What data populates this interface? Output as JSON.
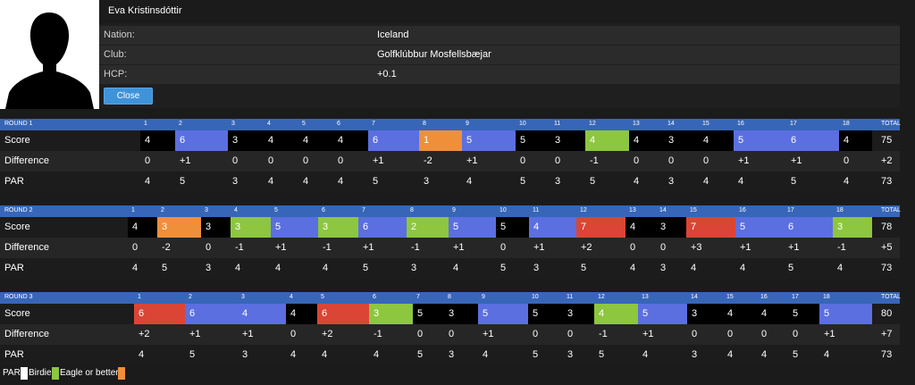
{
  "player": {
    "name": "Eva Kristinsdóttir",
    "nation_label": "Nation:",
    "nation": "Iceland",
    "club_label": "Club:",
    "club": "Golfklúbbur Mosfellsbæjar",
    "hcp_label": "HCP:",
    "hcp": "+0.1",
    "close_label": "Close"
  },
  "colors": {
    "par": "#000000",
    "birdie": "#8dc63f",
    "eagle": "#ef8f3a",
    "bogey": "#5b6fe0",
    "double_bogey": "#da4536"
  },
  "row_labels": {
    "score": "Score",
    "difference": "Difference",
    "par": "PAR"
  },
  "total_label": "TOTAL",
  "rounds": [
    {
      "title": "ROUND 1",
      "holes": [
        "1",
        "2",
        "3",
        "4",
        "5",
        "6",
        "7",
        "8",
        "9",
        "10",
        "11",
        "12",
        "13",
        "14",
        "15",
        "16",
        "17",
        "18"
      ],
      "score": [
        "4",
        "6",
        "3",
        "4",
        "4",
        "4",
        "6",
        "1",
        "5",
        "5",
        "3",
        "4",
        "4",
        "3",
        "4",
        "5",
        "6",
        "4"
      ],
      "difference": [
        "0",
        "+1",
        "0",
        "0",
        "0",
        "0",
        "+1",
        "-2",
        "+1",
        "0",
        "0",
        "-1",
        "0",
        "0",
        "0",
        "+1",
        "+1",
        "0"
      ],
      "par": [
        "4",
        "5",
        "3",
        "4",
        "4",
        "4",
        "5",
        "3",
        "4",
        "5",
        "3",
        "5",
        "4",
        "3",
        "4",
        "4",
        "5",
        "4"
      ],
      "score_total": "75",
      "diff_total": "+2",
      "par_total": "73"
    },
    {
      "title": "ROUND 2",
      "holes": [
        "1",
        "2",
        "3",
        "4",
        "5",
        "6",
        "7",
        "8",
        "9",
        "10",
        "11",
        "12",
        "13",
        "14",
        "15",
        "16",
        "17",
        "18"
      ],
      "score": [
        "4",
        "3",
        "3",
        "3",
        "5",
        "3",
        "6",
        "2",
        "5",
        "5",
        "4",
        "7",
        "4",
        "3",
        "7",
        "5",
        "6",
        "3"
      ],
      "difference": [
        "0",
        "-2",
        "0",
        "-1",
        "+1",
        "-1",
        "+1",
        "-1",
        "+1",
        "0",
        "+1",
        "+2",
        "0",
        "0",
        "+3",
        "+1",
        "+1",
        "-1"
      ],
      "par": [
        "4",
        "5",
        "3",
        "4",
        "4",
        "4",
        "5",
        "3",
        "4",
        "5",
        "3",
        "5",
        "4",
        "3",
        "4",
        "4",
        "5",
        "4"
      ],
      "score_total": "78",
      "diff_total": "+5",
      "par_total": "73"
    },
    {
      "title": "ROUND 3",
      "holes": [
        "1",
        "2",
        "3",
        "4",
        "5",
        "6",
        "7",
        "8",
        "9",
        "10",
        "11",
        "12",
        "13",
        "14",
        "15",
        "16",
        "17",
        "18"
      ],
      "score": [
        "6",
        "6",
        "4",
        "4",
        "6",
        "3",
        "5",
        "3",
        "5",
        "5",
        "3",
        "4",
        "5",
        "3",
        "4",
        "4",
        "5",
        "5"
      ],
      "difference": [
        "+2",
        "+1",
        "+1",
        "0",
        "+2",
        "-1",
        "0",
        "0",
        "+1",
        "0",
        "0",
        "-1",
        "+1",
        "0",
        "0",
        "0",
        "0",
        "+1"
      ],
      "par": [
        "4",
        "5",
        "3",
        "4",
        "4",
        "4",
        "5",
        "3",
        "4",
        "5",
        "3",
        "5",
        "4",
        "3",
        "4",
        "4",
        "5",
        "4"
      ],
      "score_total": "80",
      "diff_total": "+7",
      "par_total": "73"
    }
  ],
  "legend": {
    "par": "PAR",
    "birdie": "Birdie",
    "eagle": "Eagle or better"
  }
}
